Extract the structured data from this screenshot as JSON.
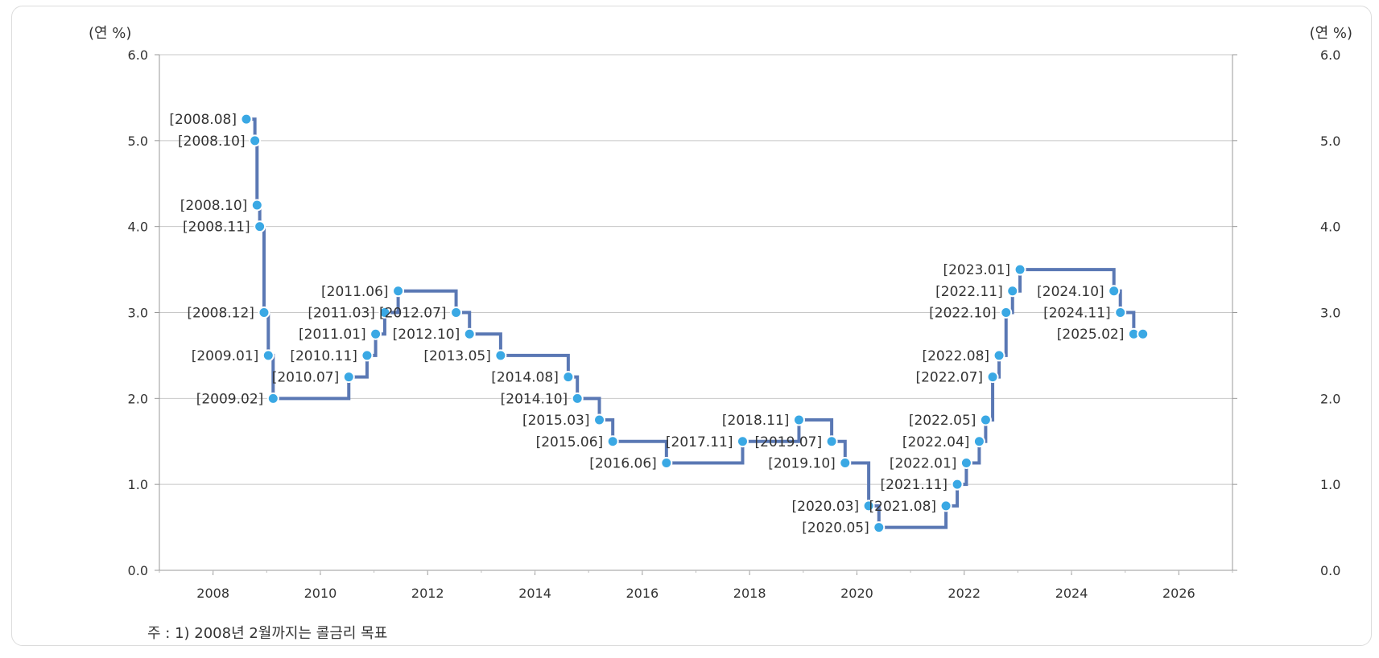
{
  "chart_data": {
    "type": "line",
    "step": true,
    "left_unit": "(연 %)",
    "right_unit": "(연 %)",
    "xlim": [
      2007,
      2027
    ],
    "ylim": [
      0,
      6
    ],
    "x_ticks": [
      "2008",
      "2010",
      "2012",
      "2014",
      "2016",
      "2018",
      "2020",
      "2022",
      "2024",
      "2026"
    ],
    "y_ticks": [
      "0.0",
      "1.0",
      "2.0",
      "3.0",
      "4.0",
      "5.0",
      "6.0"
    ],
    "grid": true,
    "line_color": "#5a78b4",
    "point_color": "#3aa8e4",
    "points": [
      {
        "x": 2008.62,
        "y": 5.25,
        "label": "[2008.08]"
      },
      {
        "x": 2008.78,
        "y": 5.0,
        "label": "[2008.10]"
      },
      {
        "x": 2008.82,
        "y": 4.25,
        "label": "[2008.10]"
      },
      {
        "x": 2008.87,
        "y": 4.0,
        "label": "[2008.11]"
      },
      {
        "x": 2008.95,
        "y": 3.0,
        "label": "[2008.12]"
      },
      {
        "x": 2009.03,
        "y": 2.5,
        "label": "[2009.01]"
      },
      {
        "x": 2009.12,
        "y": 2.0,
        "label": "[2009.02]"
      },
      {
        "x": 2010.53,
        "y": 2.25,
        "label": "[2010.07]"
      },
      {
        "x": 2010.87,
        "y": 2.5,
        "label": "[2010.11]"
      },
      {
        "x": 2011.03,
        "y": 2.75,
        "label": "[2011.01]"
      },
      {
        "x": 2011.2,
        "y": 3.0,
        "label": "[2011.03]"
      },
      {
        "x": 2011.45,
        "y": 3.25,
        "label": "[2011.06]"
      },
      {
        "x": 2012.53,
        "y": 3.0,
        "label": "[2012.07]"
      },
      {
        "x": 2012.78,
        "y": 2.75,
        "label": "[2012.10]"
      },
      {
        "x": 2013.36,
        "y": 2.5,
        "label": "[2013.05]"
      },
      {
        "x": 2014.62,
        "y": 2.25,
        "label": "[2014.08]"
      },
      {
        "x": 2014.79,
        "y": 2.0,
        "label": "[2014.10]"
      },
      {
        "x": 2015.2,
        "y": 1.75,
        "label": "[2015.03]"
      },
      {
        "x": 2015.45,
        "y": 1.5,
        "label": "[2015.06]"
      },
      {
        "x": 2016.45,
        "y": 1.25,
        "label": "[2016.06]"
      },
      {
        "x": 2017.87,
        "y": 1.5,
        "label": "[2017.11]"
      },
      {
        "x": 2018.92,
        "y": 1.75,
        "label": "[2018.11]"
      },
      {
        "x": 2019.53,
        "y": 1.5,
        "label": "[2019.07]"
      },
      {
        "x": 2019.78,
        "y": 1.25,
        "label": "[2019.10]"
      },
      {
        "x": 2020.22,
        "y": 0.75,
        "label": "[2020.03]"
      },
      {
        "x": 2020.41,
        "y": 0.5,
        "label": "[2020.05]"
      },
      {
        "x": 2021.66,
        "y": 0.75,
        "label": "[2021.08]"
      },
      {
        "x": 2021.87,
        "y": 1.0,
        "label": "[2021.11]"
      },
      {
        "x": 2022.04,
        "y": 1.25,
        "label": "[2022.01]"
      },
      {
        "x": 2022.28,
        "y": 1.5,
        "label": "[2022.04]"
      },
      {
        "x": 2022.4,
        "y": 1.75,
        "label": "[2022.05]"
      },
      {
        "x": 2022.53,
        "y": 2.25,
        "label": "[2022.07]"
      },
      {
        "x": 2022.65,
        "y": 2.5,
        "label": "[2022.08]"
      },
      {
        "x": 2022.78,
        "y": 3.0,
        "label": "[2022.10]"
      },
      {
        "x": 2022.9,
        "y": 3.25,
        "label": "[2022.11]"
      },
      {
        "x": 2023.04,
        "y": 3.5,
        "label": "[2023.01]"
      },
      {
        "x": 2024.79,
        "y": 3.25,
        "label": "[2024.10]"
      },
      {
        "x": 2024.91,
        "y": 3.0,
        "label": "[2024.11]"
      },
      {
        "x": 2025.16,
        "y": 2.75,
        "label": "[2025.02]"
      },
      {
        "x": 2025.33,
        "y": 2.75,
        "label": ""
      }
    ]
  },
  "footnote": "주 : 1) 2008년 2월까지는 콜금리 목표"
}
